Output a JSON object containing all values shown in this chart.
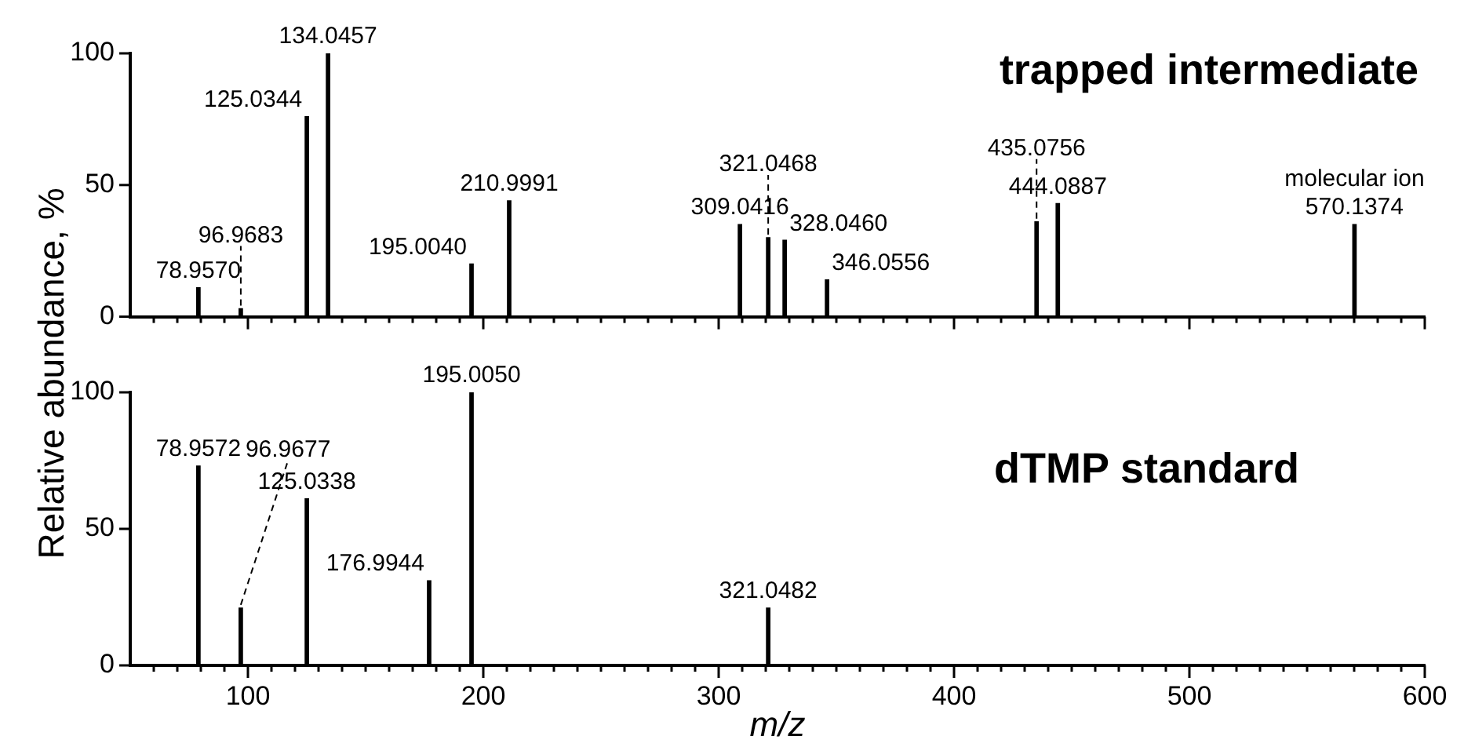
{
  "chart_data": [
    {
      "type": "bar",
      "title": "trapped intermediate",
      "ylabel": "Relative abundance, %",
      "color": "#000000",
      "x": [
        78.957,
        96.9683,
        125.0344,
        134.0457,
        195.004,
        210.9991,
        309.0416,
        321.0468,
        328.046,
        346.0556,
        435.0756,
        444.0887,
        570.1374
      ],
      "values": [
        11,
        3,
        76,
        100,
        20,
        44,
        35,
        30,
        29,
        14,
        36,
        43,
        35
      ],
      "xlim": [
        50,
        600
      ],
      "ylim": [
        0,
        100
      ],
      "yticks": [
        0,
        50,
        100
      ],
      "tick_labels": "y",
      "xticks": [
        {
          "value": 60,
          "label": null
        },
        {
          "value": 70,
          "label": null
        },
        {
          "value": 80,
          "label": null
        },
        {
          "value": 90,
          "label": null
        },
        100,
        {
          "value": 110,
          "label": null
        },
        {
          "value": 120,
          "label": null
        },
        {
          "value": 130,
          "label": null
        },
        {
          "value": 140,
          "label": null
        },
        {
          "value": 150,
          "label": null
        },
        {
          "value": 160,
          "label": null
        },
        {
          "value": 170,
          "label": null
        },
        {
          "value": 180,
          "label": null
        },
        {
          "value": 190,
          "label": null
        },
        200,
        {
          "value": 210,
          "label": null
        },
        {
          "value": 220,
          "label": null
        },
        {
          "value": 230,
          "label": null
        },
        {
          "value": 240,
          "label": null
        },
        {
          "value": 250,
          "label": null
        },
        {
          "value": 260,
          "label": null
        },
        {
          "value": 270,
          "label": null
        },
        {
          "value": 280,
          "label": null
        },
        {
          "value": 290,
          "label": null
        },
        300,
        {
          "value": 310,
          "label": null
        },
        {
          "value": 320,
          "label": null
        },
        {
          "value": 330,
          "label": null
        },
        {
          "value": 340,
          "label": null
        },
        {
          "value": 350,
          "label": null
        },
        {
          "value": 360,
          "label": null
        },
        {
          "value": 370,
          "label": null
        },
        {
          "value": 380,
          "label": null
        },
        {
          "value": 390,
          "label": null
        },
        400,
        {
          "value": 410,
          "label": null
        },
        {
          "value": 420,
          "label": null
        },
        {
          "value": 430,
          "label": null
        },
        {
          "value": 440,
          "label": null
        },
        {
          "value": 450,
          "label": null
        },
        {
          "value": 460,
          "label": null
        },
        {
          "value": 470,
          "label": null
        },
        {
          "value": 480,
          "label": null
        },
        {
          "value": 490,
          "label": null
        },
        500,
        {
          "value": 510,
          "label": null
        },
        {
          "value": 520,
          "label": null
        },
        {
          "value": 530,
          "label": null
        },
        {
          "value": 540,
          "label": null
        },
        {
          "value": 550,
          "label": null
        },
        {
          "value": 560,
          "label": null
        },
        {
          "value": 570,
          "label": null
        },
        {
          "value": 580,
          "label": null
        },
        {
          "value": 590,
          "label": null
        },
        600
      ],
      "annotations": [
        {
          "text": "134.0457",
          "x": 134.0457,
          "y": 100
        },
        {
          "text": "125.0344",
          "x": 125.0344,
          "y": 76
        },
        {
          "text": "210.9991",
          "x": 210.9991,
          "y": 44
        },
        {
          "text": "444.0887",
          "x": 444.0887,
          "y": 43
        },
        {
          "text": "435.0756",
          "x": 435.0756,
          "y": 36
        },
        {
          "text": "570.1374",
          "x": 570.1374,
          "y": 35
        },
        {
          "text": "molecular ion",
          "x": 570.1374,
          "y": 35
        },
        {
          "text": "309.0416",
          "x": 309.0416,
          "y": 35
        },
        {
          "text": "321.0468",
          "x": 321.0468,
          "y": 30
        },
        {
          "text": "328.0460",
          "x": 328.046,
          "y": 29
        },
        {
          "text": "195.0040",
          "x": 195.004,
          "y": 20
        },
        {
          "text": "346.0556",
          "x": 346.0556,
          "y": 14
        },
        {
          "text": "78.9570",
          "x": 78.957,
          "y": 11
        },
        {
          "text": "96.9683",
          "x": 96.9683,
          "y": 3
        }
      ]
    },
    {
      "type": "bar",
      "title": "dTMP standard",
      "xlabel": "m/z",
      "color": "#000000",
      "x": [
        78.9572,
        96.9677,
        125.0338,
        176.9944,
        195.005,
        321.0482
      ],
      "values": [
        73,
        21,
        61,
        31,
        100,
        21
      ],
      "xlim": [
        50,
        600
      ],
      "ylim": [
        0,
        100
      ],
      "yticks": [
        0,
        50,
        100
      ],
      "xticks": [
        {
          "value": 60,
          "label": null
        },
        {
          "value": 70,
          "label": null
        },
        {
          "value": 80,
          "label": null
        },
        {
          "value": 90,
          "label": null
        },
        100,
        {
          "value": 110,
          "label": null
        },
        {
          "value": 120,
          "label": null
        },
        {
          "value": 130,
          "label": null
        },
        {
          "value": 140,
          "label": null
        },
        {
          "value": 150,
          "label": null
        },
        {
          "value": 160,
          "label": null
        },
        {
          "value": 170,
          "label": null
        },
        {
          "value": 180,
          "label": null
        },
        {
          "value": 190,
          "label": null
        },
        200,
        {
          "value": 210,
          "label": null
        },
        {
          "value": 220,
          "label": null
        },
        {
          "value": 230,
          "label": null
        },
        {
          "value": 240,
          "label": null
        },
        {
          "value": 250,
          "label": null
        },
        {
          "value": 260,
          "label": null
        },
        {
          "value": 270,
          "label": null
        },
        {
          "value": 280,
          "label": null
        },
        {
          "value": 290,
          "label": null
        },
        300,
        {
          "value": 310,
          "label": null
        },
        {
          "value": 320,
          "label": null
        },
        {
          "value": 330,
          "label": null
        },
        {
          "value": 340,
          "label": null
        },
        {
          "value": 350,
          "label": null
        },
        {
          "value": 360,
          "label": null
        },
        {
          "value": 370,
          "label": null
        },
        {
          "value": 380,
          "label": null
        },
        {
          "value": 390,
          "label": null
        },
        400,
        {
          "value": 410,
          "label": null
        },
        {
          "value": 420,
          "label": null
        },
        {
          "value": 430,
          "label": null
        },
        {
          "value": 440,
          "label": null
        },
        {
          "value": 450,
          "label": null
        },
        {
          "value": 460,
          "label": null
        },
        {
          "value": 470,
          "label": null
        },
        {
          "value": 480,
          "label": null
        },
        {
          "value": 490,
          "label": null
        },
        500,
        {
          "value": 510,
          "label": null
        },
        {
          "value": 520,
          "label": null
        },
        {
          "value": 530,
          "label": null
        },
        {
          "value": 540,
          "label": null
        },
        {
          "value": 550,
          "label": null
        },
        {
          "value": 560,
          "label": null
        },
        {
          "value": 570,
          "label": null
        },
        {
          "value": 580,
          "label": null
        },
        {
          "value": 590,
          "label": null
        },
        600
      ],
      "annotations": [
        {
          "text": "195.0050",
          "x": 195.005,
          "y": 100
        },
        {
          "text": "78.9572",
          "x": 78.9572,
          "y": 73
        },
        {
          "text": "125.0338",
          "x": 125.0338,
          "y": 61
        },
        {
          "text": "176.9944",
          "x": 176.9944,
          "y": 31
        },
        {
          "text": "96.9677",
          "x": 96.9677,
          "y": 21
        },
        {
          "text": "321.0482",
          "x": 321.0482,
          "y": 21
        }
      ]
    }
  ]
}
